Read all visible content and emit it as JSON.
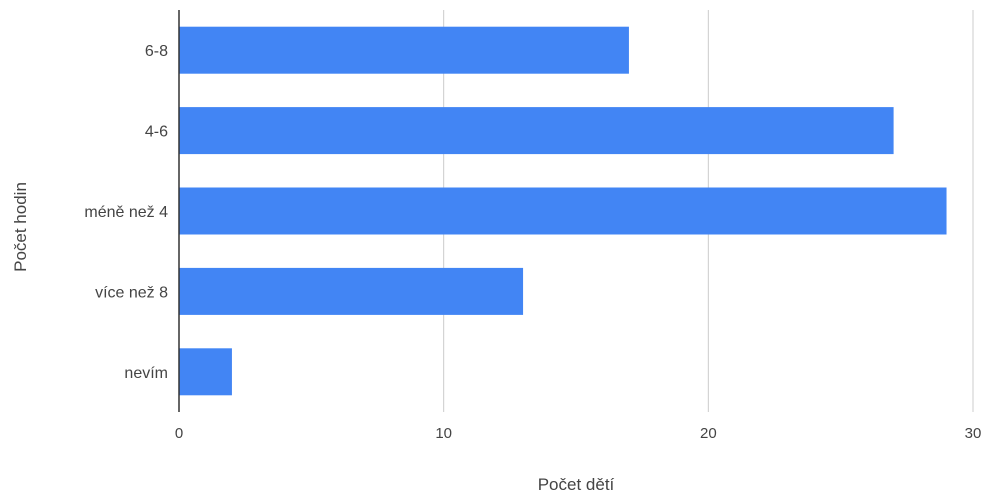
{
  "chart_data": {
    "type": "bar",
    "orientation": "horizontal",
    "categories": [
      "6-8",
      "4-6",
      "méně než 4",
      "více než 8",
      "nevím"
    ],
    "values": [
      17,
      27,
      29,
      13,
      2
    ],
    "xlabel": "Počet dětí",
    "ylabel": "Počet hodin",
    "xlim": [
      0,
      30
    ],
    "xticks": [
      0,
      10,
      20,
      30
    ],
    "grid": "vertical",
    "legend": "none",
    "bar_color": "#4285f4",
    "grid_color": "#cccccc",
    "axis_color": "#333333"
  }
}
